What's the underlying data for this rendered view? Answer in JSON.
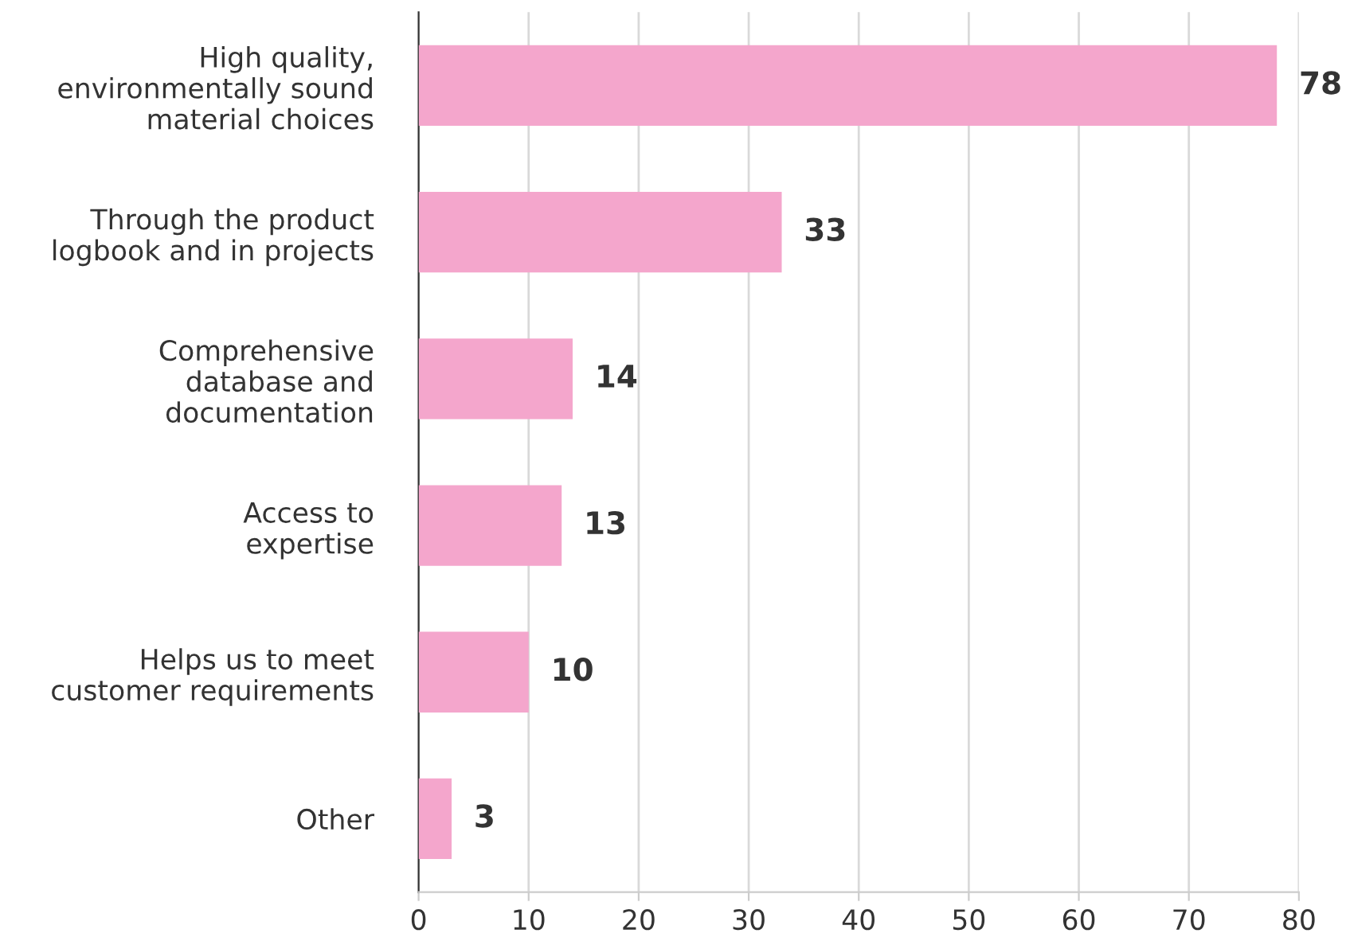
{
  "chart_data": {
    "type": "bar",
    "orientation": "horizontal",
    "categories": [
      "High quality,\nenvironmentally sound\nmaterial choices",
      "Through the product\nlogbook and in projects",
      "Comprehensive\ndatabase and\ndocumentation",
      "Access to\nexpertise",
      "Helps us to meet\ncustomer requirements",
      "Other"
    ],
    "values": [
      78,
      33,
      14,
      13,
      10,
      3
    ],
    "color": "#f4a6cc",
    "xlim": [
      0,
      80
    ],
    "xticks": [
      0,
      10,
      20,
      30,
      40,
      50,
      60,
      70,
      80
    ],
    "grid": "x",
    "data_labels": true
  }
}
